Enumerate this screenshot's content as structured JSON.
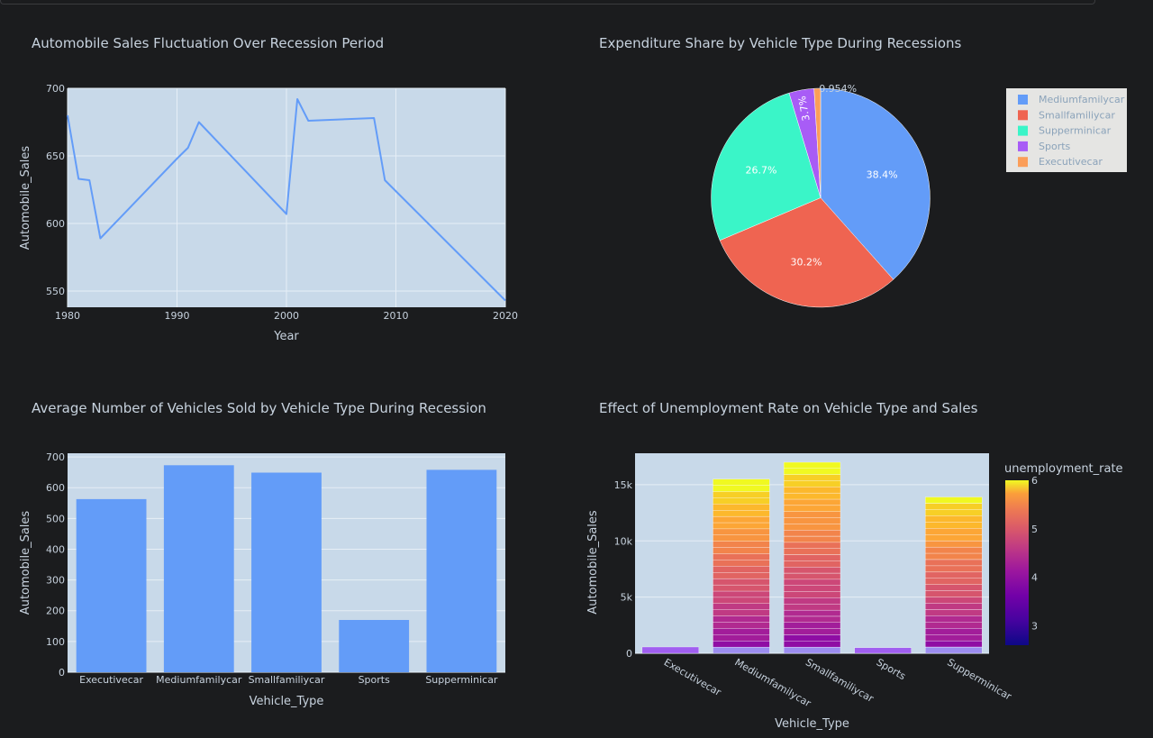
{
  "colors": {
    "plot_bg": "#c8d9e9",
    "line": "#639cf8",
    "bar": "#639cf8",
    "grid": "#e6eef6",
    "text": "#c7d2de",
    "page_bg": "#1b1c1e"
  },
  "chart_data": [
    {
      "type": "line",
      "title": "Automobile Sales Fluctuation Over Recession Period",
      "xlabel": "Year",
      "ylabel": "Automobile_Sales",
      "x": [
        1980,
        1981,
        1982,
        1983,
        1990,
        1991,
        1992,
        2000,
        2001,
        2002,
        2008,
        2009,
        2020
      ],
      "y": [
        680,
        633,
        632,
        589,
        648,
        656,
        675,
        607,
        692,
        676,
        678,
        632,
        543
      ],
      "xlim": [
        1980,
        2020
      ],
      "ylim": [
        538,
        700
      ],
      "xticks": [
        1980,
        1990,
        2000,
        2010,
        2020
      ],
      "yticks": [
        550,
        600,
        650,
        700
      ],
      "grid": true
    },
    {
      "type": "pie",
      "title": "Expenditure Share by Vehicle Type During Recessions",
      "labels": [
        "Mediumfamilycar",
        "Smallfamiliycar",
        "Supperminicar",
        "Sports",
        "Executivecar"
      ],
      "values": [
        38.4,
        30.2,
        26.7,
        3.7,
        0.954
      ],
      "value_labels": [
        "38.4%",
        "30.2%",
        "26.7%",
        "3.7%",
        "0.954%"
      ],
      "colors": [
        "#639cf8",
        "#ef6451",
        "#3af5c8",
        "#a85cf6",
        "#fb9e59"
      ],
      "legend": "top-right"
    },
    {
      "type": "bar",
      "title": "Average Number of Vehicles Sold by Vehicle Type During Recession",
      "xlabel": "Vehicle_Type",
      "ylabel": "Automobile_Sales",
      "categories": [
        "Executivecar",
        "Mediumfamilycar",
        "Smallfamiliycar",
        "Sports",
        "Supperminicar"
      ],
      "values": [
        563,
        673,
        649,
        170,
        658
      ],
      "ylim": [
        0,
        712
      ],
      "yticks": [
        0,
        100,
        200,
        300,
        400,
        500,
        600,
        700
      ],
      "grid": true
    },
    {
      "type": "bar",
      "title": "Effect of Unemployment Rate on Vehicle Type and Sales",
      "xlabel": "Vehicle_Type",
      "ylabel": "Automobile_Sales",
      "categories": [
        "Executivecar",
        "Mediumfamilycar",
        "Smallfamiliycar",
        "Sports",
        "Supperminicar"
      ],
      "values": [
        563,
        15500,
        17000,
        500,
        13900
      ],
      "ylim": [
        0,
        17800
      ],
      "yticks": [
        0,
        5000,
        10000,
        15000
      ],
      "ytick_labels": [
        "0",
        "5k",
        "10k",
        "15k"
      ],
      "colorbar": {
        "title": "unemployment_rate",
        "range": [
          2.6,
          6
        ],
        "ticks": [
          "3",
          "4",
          "5",
          "6"
        ],
        "tick_values": [
          3,
          4,
          5,
          6
        ]
      },
      "grid": true
    }
  ]
}
